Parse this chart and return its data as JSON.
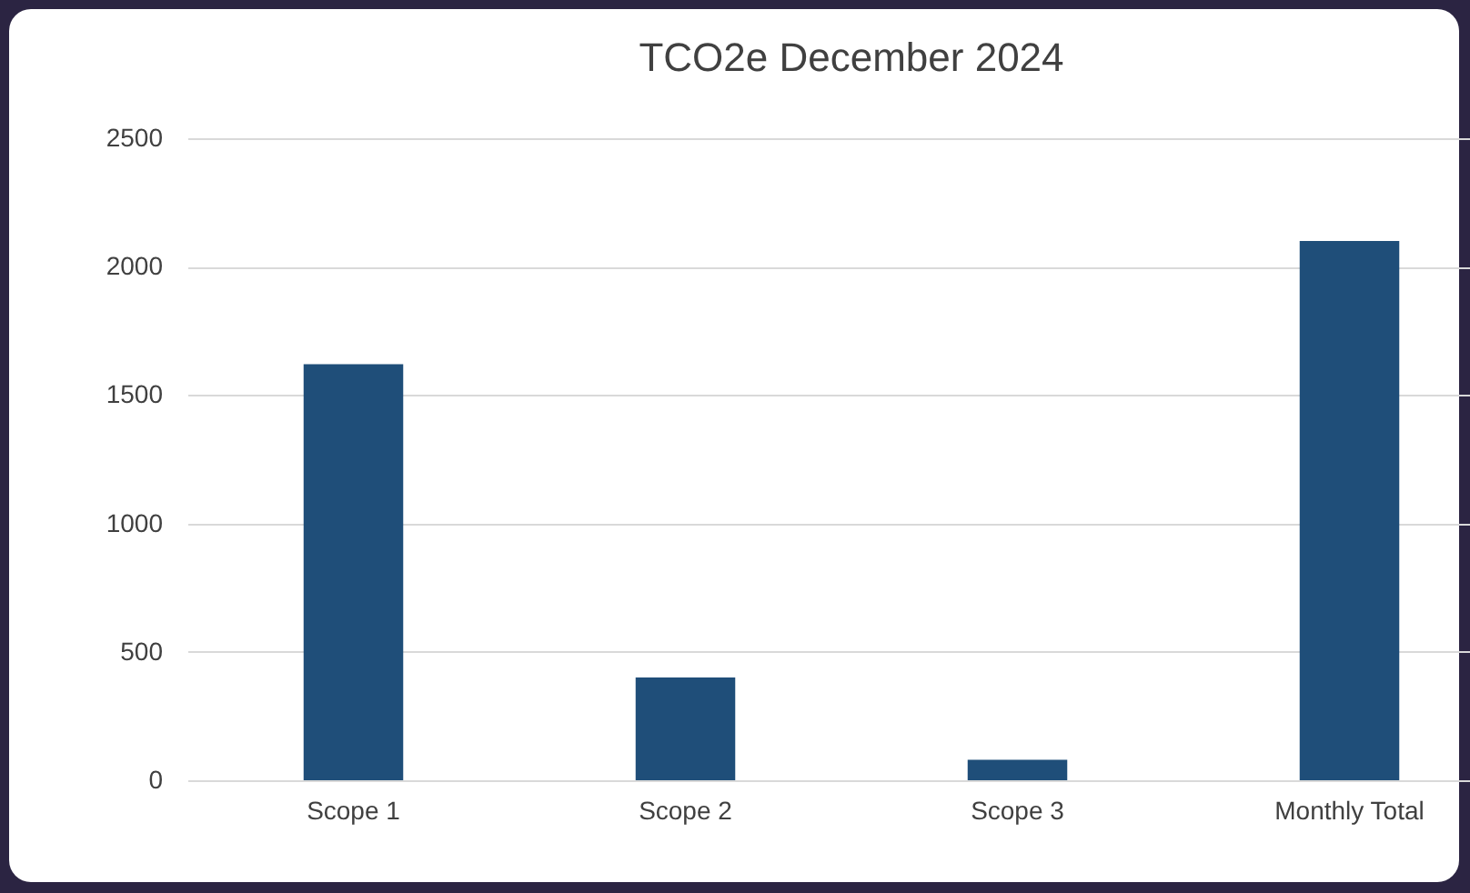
{
  "chart_data": {
    "type": "bar",
    "title": "TCO2e December 2024",
    "categories": [
      "Scope 1",
      "Scope 2",
      "Scope 3",
      "Monthly Total"
    ],
    "values": [
      1620,
      400,
      80,
      2100
    ],
    "color": "#1f4e79",
    "ylim": [
      0,
      2500
    ],
    "yticks": [
      0,
      500,
      1000,
      1500,
      2000,
      2500
    ],
    "grid": "y"
  }
}
